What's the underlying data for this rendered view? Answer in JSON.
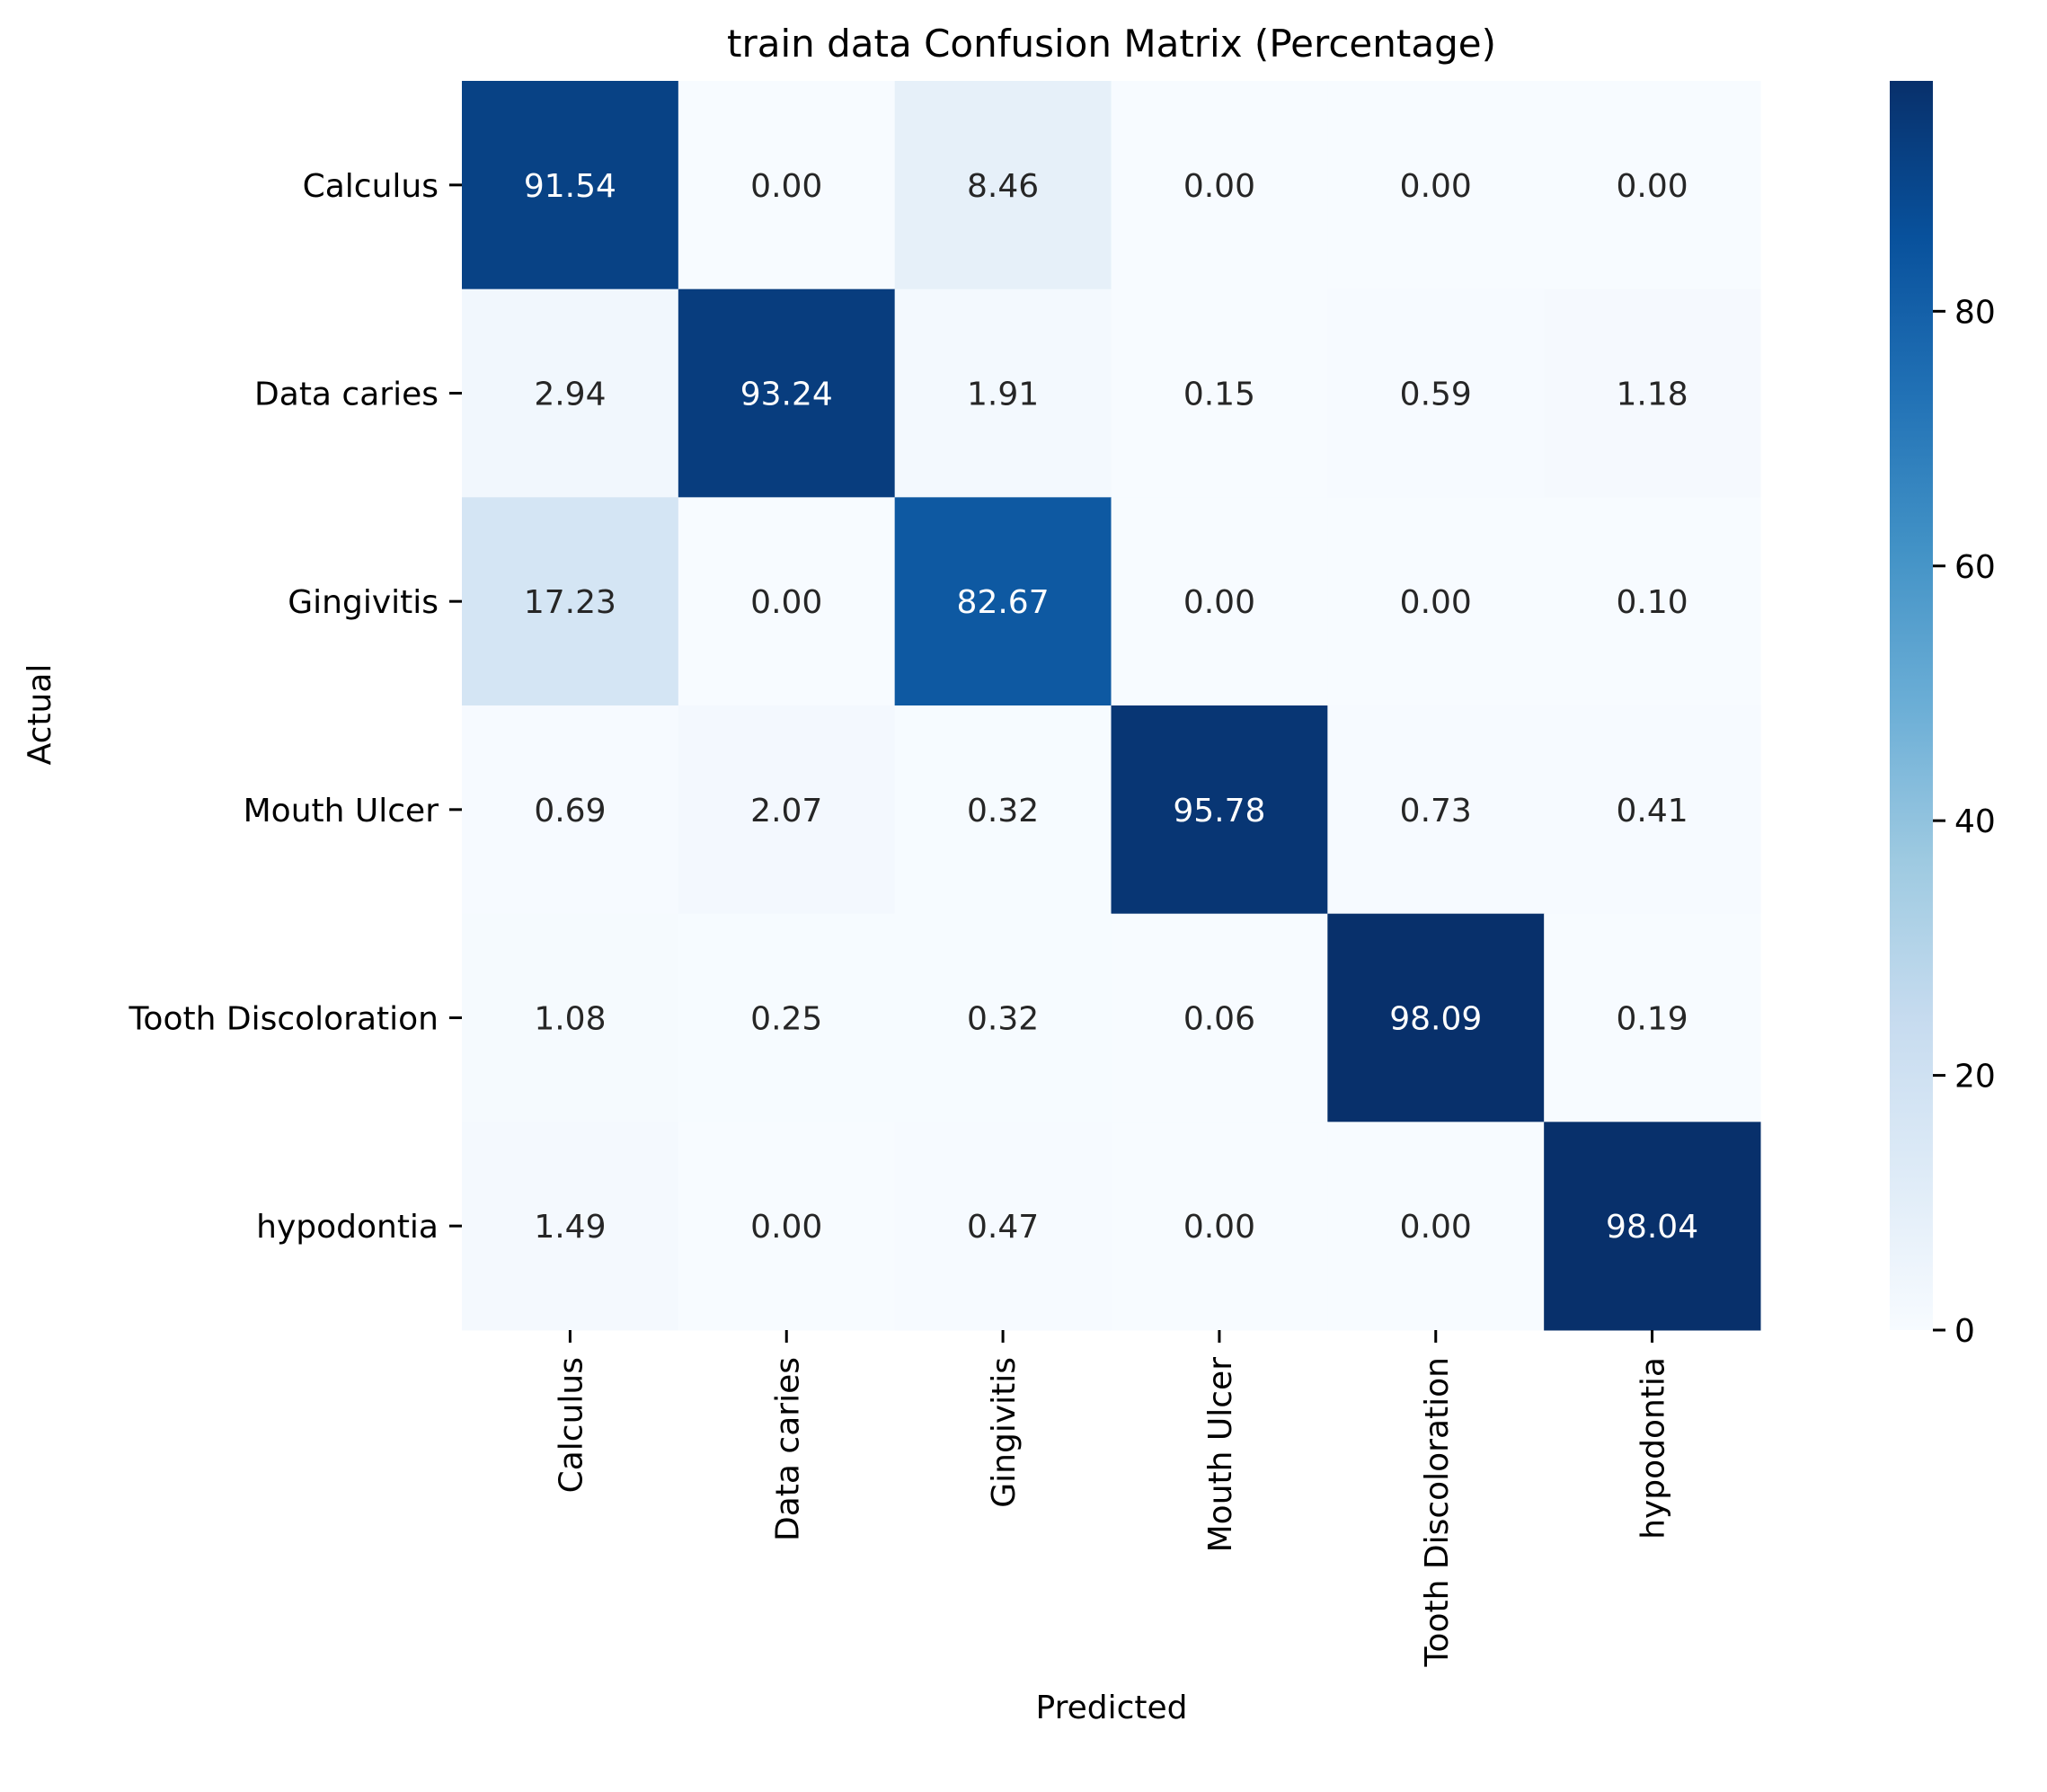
{
  "chart_data": {
    "type": "heatmap",
    "title": "train data Confusion Matrix (Percentage)",
    "xlabel": "Predicted",
    "ylabel": "Actual",
    "x_categories": [
      "Calculus",
      "Data caries",
      "Gingivitis",
      "Mouth Ulcer",
      "Tooth Discoloration",
      "hypodontia"
    ],
    "y_categories": [
      "Calculus",
      "Data caries",
      "Gingivitis",
      "Mouth Ulcer",
      "Tooth Discoloration",
      "hypodontia"
    ],
    "values": [
      [
        91.54,
        0.0,
        8.46,
        0.0,
        0.0,
        0.0
      ],
      [
        2.94,
        93.24,
        1.91,
        0.15,
        0.59,
        1.18
      ],
      [
        17.23,
        0.0,
        82.67,
        0.0,
        0.0,
        0.1
      ],
      [
        0.69,
        2.07,
        0.32,
        95.78,
        0.73,
        0.41
      ],
      [
        1.08,
        0.25,
        0.32,
        0.06,
        98.09,
        0.19
      ],
      [
        1.49,
        0.0,
        0.47,
        0.0,
        0.0,
        98.04
      ]
    ],
    "value_format": "0.00",
    "colormap": "Blues",
    "colorbar": {
      "range": [
        0,
        98.09
      ],
      "ticks": [
        0,
        20,
        40,
        60,
        80
      ]
    }
  }
}
